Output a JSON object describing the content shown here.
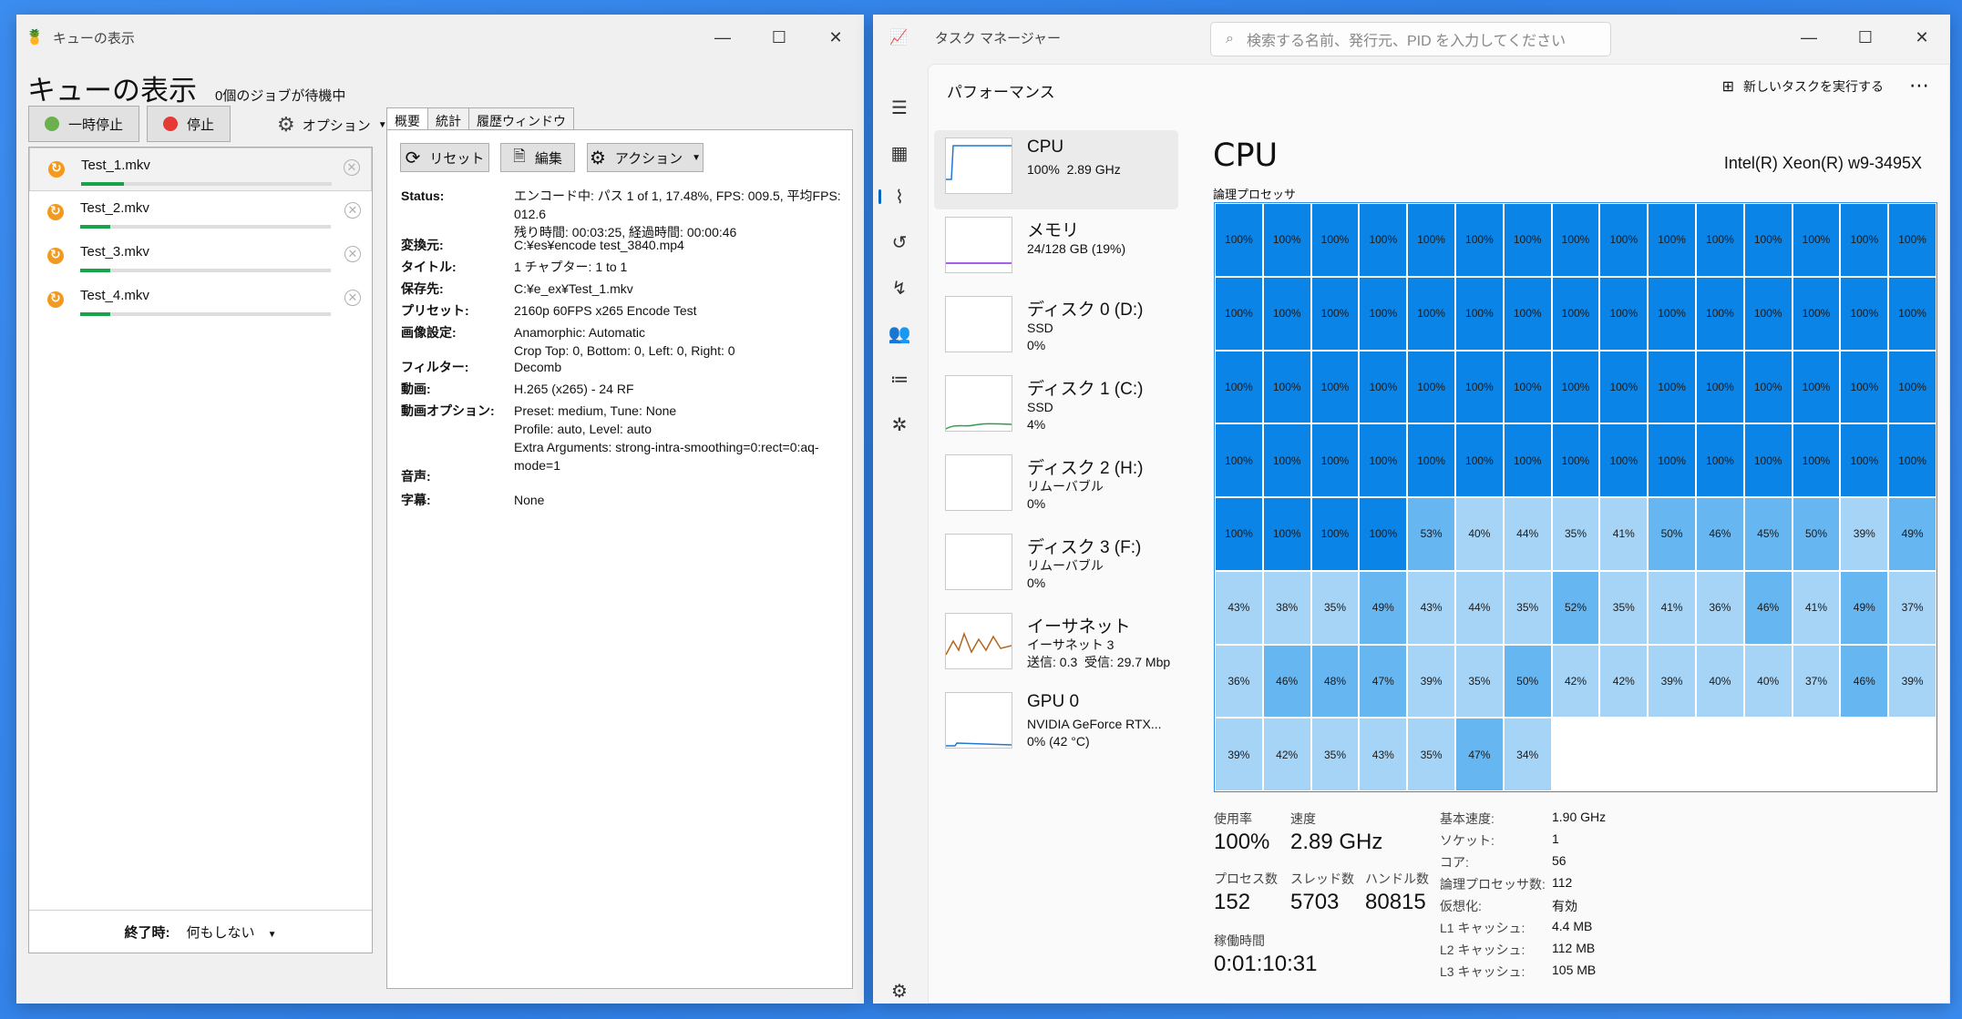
{
  "queue_window": {
    "title": "キューの表示",
    "heading": "キューの表示",
    "pending": "0個のジョブが待機中",
    "pause_label": "一時停止",
    "stop_label": "停止",
    "options_label": "オプション",
    "jobs": [
      {
        "name": "Test_1.mkv",
        "progress": 0.17
      },
      {
        "name": "Test_2.mkv",
        "progress": 0.12
      },
      {
        "name": "Test_3.mkv",
        "progress": 0.12
      },
      {
        "name": "Test_4.mkv",
        "progress": 0.12
      }
    ],
    "tabs": [
      "概要",
      "統計",
      "履歴ウィンドウ"
    ],
    "reset_label": "リセット",
    "edit_label": "編集",
    "action_label": "アクション",
    "details": [
      {
        "label": "Status:",
        "value": "エンコード中: パス 1 of 1,  17.48%, FPS: 009.5,  平均FPS: 012.6\n残り時間: 00:03:25,  経過時間: 00:00:46"
      },
      {
        "label": "変換元:",
        "value": "C:¥es¥encode test_3840.mp4"
      },
      {
        "label": "タイトル:",
        "value": "1   チャプター:  1 to 1"
      },
      {
        "label": "保存先:",
        "value": "C:¥e_ex¥Test_1.mkv"
      },
      {
        "label": "プリセット:",
        "value": "2160p 60FPS x265 Encode Test"
      },
      {
        "label": "画像設定:",
        "value": "Anamorphic: Automatic\nCrop Top: 0, Bottom: 0, Left: 0, Right: 0"
      },
      {
        "label": "フィルター:",
        "value": "Decomb"
      },
      {
        "label": "動画:",
        "value": "H.265 (x265) - 24 RF"
      },
      {
        "label": "動画オプション:",
        "value": "Preset: medium, Tune: None\nProfile: auto, Level: auto\nExtra Arguments: strong-intra-smoothing=0:rect=0:aq-mode=1"
      },
      {
        "label": "音声:",
        "value": ""
      },
      {
        "label": "字幕:",
        "value": "None"
      }
    ],
    "when_done_label": "終了時:",
    "when_done_value": "何もしない"
  },
  "task_manager": {
    "title": "タスク マネージャー",
    "search_placeholder": "検索する名前、発行元、PID を入力してください",
    "section": "パフォーマンス",
    "new_task": "新しいタスクを実行する",
    "devices": [
      {
        "name": "CPU",
        "detail": "100%  2.89 GHz"
      },
      {
        "name": "メモリ",
        "detail": "24/128 GB (19%)"
      },
      {
        "name": "ディスク 0 (D:)",
        "detail": "SSD\n0%"
      },
      {
        "name": "ディスク 1 (C:)",
        "detail": "SSD\n4%"
      },
      {
        "name": "ディスク 2 (H:)",
        "detail": "リムーバブル\n0%"
      },
      {
        "name": "ディスク 3 (F:)",
        "detail": "リムーバブル\n0%"
      },
      {
        "name": "イーサネット",
        "detail": "イーサネット 3\n送信: 0.3  受信: 29.7 Mbp"
      },
      {
        "name": "GPU 0",
        "detail": "NVIDIA GeForce RTX...\n0% (42 °C)"
      }
    ],
    "cpu_title": "CPU",
    "cpu_model": "Intel(R) Xeon(R) w9-3495X",
    "logical_label": "論理プロセッサ",
    "core_usage": [
      100,
      100,
      100,
      100,
      100,
      100,
      100,
      100,
      100,
      100,
      100,
      100,
      100,
      100,
      100,
      100,
      100,
      100,
      100,
      100,
      100,
      100,
      100,
      100,
      100,
      100,
      100,
      100,
      100,
      100,
      100,
      100,
      100,
      100,
      100,
      100,
      100,
      100,
      100,
      100,
      100,
      100,
      100,
      100,
      100,
      100,
      100,
      100,
      100,
      100,
      100,
      100,
      100,
      100,
      100,
      100,
      100,
      100,
      100,
      100,
      100,
      100,
      100,
      100,
      53,
      40,
      44,
      35,
      41,
      50,
      46,
      45,
      50,
      39,
      49,
      43,
      38,
      35,
      49,
      43,
      44,
      35,
      52,
      35,
      41,
      36,
      46,
      41,
      49,
      37,
      36,
      46,
      48,
      47,
      39,
      35,
      50,
      42,
      42,
      39,
      40,
      40,
      37,
      46,
      39,
      39,
      42,
      35,
      43,
      35,
      47,
      34
    ],
    "stats": {
      "usage_label": "使用率",
      "usage": "100%",
      "speed_label": "速度",
      "speed": "2.89 GHz",
      "proc_label": "プロセス数",
      "proc": "152",
      "thread_label": "スレッド数",
      "thread": "5703",
      "handle_label": "ハンドル数",
      "handle": "80815",
      "uptime_label": "稼働時間",
      "uptime": "0:01:10:31"
    },
    "specs": [
      {
        "k": "基本速度:",
        "v": "1.90 GHz"
      },
      {
        "k": "ソケット:",
        "v": "1"
      },
      {
        "k": "コア:",
        "v": "56"
      },
      {
        "k": "論理プロセッサ数:",
        "v": "112"
      },
      {
        "k": "仮想化:",
        "v": "有効"
      },
      {
        "k": "L1 キャッシュ:",
        "v": "4.4 MB"
      },
      {
        "k": "L2 キャッシュ:",
        "v": "112 MB"
      },
      {
        "k": "L3 キャッシュ:",
        "v": "105 MB"
      }
    ]
  }
}
